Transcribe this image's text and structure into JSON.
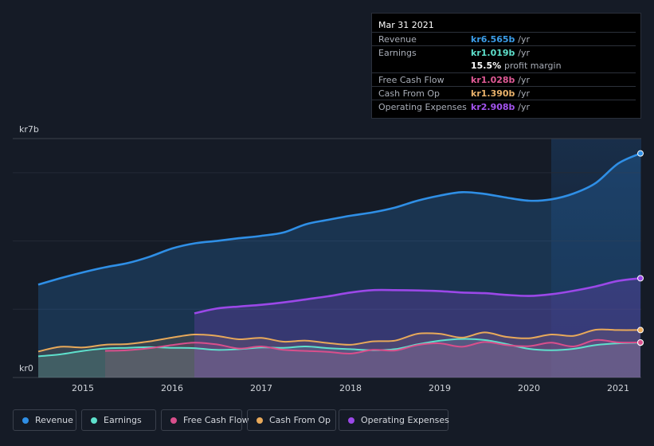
{
  "colors": {
    "revenue": "#2f8fe6",
    "earnings": "#5ee0cc",
    "free_cash_flow": "#d94f8c",
    "cash_from_op": "#e8a95a",
    "operating_expenses": "#9b48e8",
    "background": "#151b26"
  },
  "tooltip": {
    "date": "Mar 31 2021",
    "rows": [
      {
        "label": "Revenue",
        "value": "kr6.565b",
        "unit": "/yr",
        "color": "#3b9de8"
      },
      {
        "label": "Earnings",
        "value": "kr1.019b",
        "unit": "/yr",
        "color": "#5ee0cc"
      },
      {
        "margin_value": "15.5%",
        "margin_label": "profit margin"
      },
      {
        "label": "Free Cash Flow",
        "value": "kr1.028b",
        "unit": "/yr",
        "color": "#e05a96"
      },
      {
        "label": "Cash From Op",
        "value": "kr1.390b",
        "unit": "/yr",
        "color": "#eab26b"
      },
      {
        "label": "Operating Expenses",
        "value": "kr2.908b",
        "unit": "/yr",
        "color": "#a454f0"
      }
    ]
  },
  "legend": [
    {
      "label": "Revenue",
      "color": "#2f8fe6"
    },
    {
      "label": "Earnings",
      "color": "#5ee0cc"
    },
    {
      "label": "Free Cash Flow",
      "color": "#d94f8c"
    },
    {
      "label": "Cash From Op",
      "color": "#e8a95a"
    },
    {
      "label": "Operating Expenses",
      "color": "#9b48e8"
    }
  ],
  "chart_data": {
    "type": "area",
    "title": "",
    "xlabel": "",
    "ylabel": "",
    "y_unit": "kr billions",
    "ylim": [
      0,
      7
    ],
    "xlim": [
      2014.5,
      2021.25
    ],
    "y_axis_labels": [
      "kr7b",
      "kr0"
    ],
    "x_tick_labels": [
      "2015",
      "2016",
      "2017",
      "2018",
      "2019",
      "2020",
      "2021"
    ],
    "x_ticks": [
      2015,
      2016,
      2017,
      2018,
      2019,
      2020,
      2021
    ],
    "forecast_highlight_start": 2020.25,
    "series": [
      {
        "name": "Revenue",
        "key": "revenue",
        "x": [
          2014.5,
          2014.75,
          2015.0,
          2015.25,
          2015.5,
          2015.75,
          2016.0,
          2016.25,
          2016.5,
          2016.75,
          2017.0,
          2017.25,
          2017.5,
          2017.75,
          2018.0,
          2018.25,
          2018.5,
          2018.75,
          2019.0,
          2019.25,
          2019.5,
          2019.75,
          2020.0,
          2020.25,
          2020.5,
          2020.75,
          2021.0,
          2021.25
        ],
        "values": [
          2.72,
          2.91,
          3.08,
          3.23,
          3.35,
          3.54,
          3.78,
          3.93,
          4.0,
          4.08,
          4.15,
          4.25,
          4.49,
          4.62,
          4.74,
          4.84,
          4.98,
          5.18,
          5.33,
          5.43,
          5.38,
          5.27,
          5.18,
          5.22,
          5.39,
          5.7,
          6.27,
          6.565
        ]
      },
      {
        "name": "Earnings",
        "key": "earnings",
        "x": [
          2014.5,
          2014.75,
          2015.0,
          2015.25,
          2015.5,
          2015.75,
          2016.0,
          2016.25,
          2016.5,
          2016.75,
          2017.0,
          2017.25,
          2017.5,
          2017.75,
          2018.0,
          2018.25,
          2018.5,
          2018.75,
          2019.0,
          2019.25,
          2019.5,
          2019.75,
          2020.0,
          2020.25,
          2020.5,
          2020.75,
          2021.0,
          2021.25
        ],
        "values": [
          0.62,
          0.68,
          0.78,
          0.85,
          0.87,
          0.89,
          0.87,
          0.86,
          0.81,
          0.83,
          0.88,
          0.87,
          0.91,
          0.86,
          0.83,
          0.8,
          0.83,
          0.97,
          1.08,
          1.13,
          1.1,
          0.98,
          0.84,
          0.8,
          0.84,
          0.95,
          1.0,
          1.019
        ]
      },
      {
        "name": "Free Cash Flow",
        "key": "free_cash_flow",
        "x": [
          2015.25,
          2015.5,
          2015.75,
          2016.0,
          2016.25,
          2016.5,
          2016.75,
          2017.0,
          2017.25,
          2017.5,
          2017.75,
          2018.0,
          2018.25,
          2018.5,
          2018.75,
          2019.0,
          2019.25,
          2019.5,
          2019.75,
          2020.0,
          2020.25,
          2020.5,
          2020.75,
          2021.0,
          2021.25
        ],
        "values": [
          0.78,
          0.8,
          0.86,
          0.95,
          1.02,
          0.97,
          0.85,
          0.91,
          0.81,
          0.78,
          0.75,
          0.7,
          0.81,
          0.79,
          0.95,
          1.0,
          0.9,
          1.04,
          0.95,
          0.92,
          1.02,
          0.91,
          1.1,
          1.03,
          1.028
        ]
      },
      {
        "name": "Cash From Op",
        "key": "cash_from_op",
        "x": [
          2014.5,
          2014.75,
          2015.0,
          2015.25,
          2015.5,
          2015.75,
          2016.0,
          2016.25,
          2016.5,
          2016.75,
          2017.0,
          2017.25,
          2017.5,
          2017.75,
          2018.0,
          2018.25,
          2018.5,
          2018.75,
          2019.0,
          2019.25,
          2019.5,
          2019.75,
          2020.0,
          2020.25,
          2020.5,
          2020.75,
          2021.0,
          2021.25
        ],
        "values": [
          0.76,
          0.9,
          0.88,
          0.96,
          0.98,
          1.06,
          1.17,
          1.26,
          1.22,
          1.12,
          1.16,
          1.05,
          1.08,
          1.01,
          0.96,
          1.06,
          1.08,
          1.28,
          1.28,
          1.17,
          1.32,
          1.19,
          1.15,
          1.26,
          1.22,
          1.4,
          1.39,
          1.39
        ]
      },
      {
        "name": "Operating Expenses",
        "key": "operating_expenses",
        "x": [
          2016.25,
          2016.5,
          2016.75,
          2017.0,
          2017.25,
          2017.5,
          2017.75,
          2018.0,
          2018.25,
          2018.5,
          2018.75,
          2019.0,
          2019.25,
          2019.5,
          2019.75,
          2020.0,
          2020.25,
          2020.5,
          2020.75,
          2021.0,
          2021.25
        ],
        "values": [
          1.88,
          2.02,
          2.08,
          2.13,
          2.2,
          2.29,
          2.38,
          2.49,
          2.56,
          2.56,
          2.55,
          2.53,
          2.49,
          2.47,
          2.42,
          2.39,
          2.44,
          2.54,
          2.67,
          2.83,
          2.908
        ]
      }
    ]
  }
}
